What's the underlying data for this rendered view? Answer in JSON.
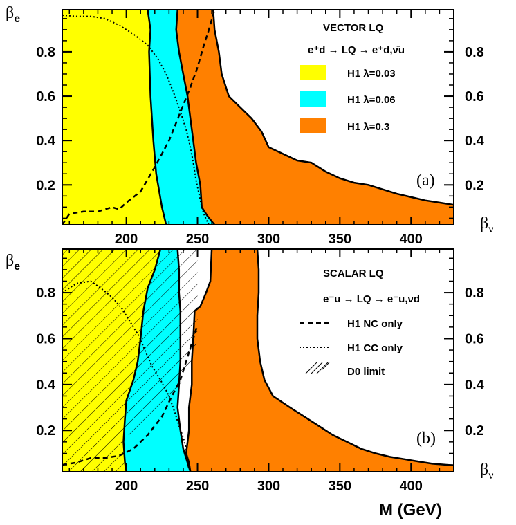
{
  "chart_data": [
    {
      "type": "area",
      "panel_label": "(a)",
      "legend_title": "VECTOR LQ",
      "process": "e⁺d → LQ → e⁺d,ν̄u",
      "x_range": [
        155,
        430
      ],
      "y_range": [
        0.02,
        0.99
      ],
      "x_ticks": [
        "200",
        "250",
        "300",
        "350",
        "400"
      ],
      "x_tick_values": [
        200,
        250,
        300,
        350,
        400
      ],
      "y_left_ticks": [
        "0.2",
        "0.4",
        "0.6",
        "0.8"
      ],
      "y_left_values": [
        0.2,
        0.4,
        0.6,
        0.8
      ],
      "y_right_ticks": [
        "0.8",
        "0.6",
        "0.4",
        "0.2"
      ],
      "y_right_values": [
        0.2,
        0.4,
        0.6,
        0.8
      ],
      "ylabel_left": "βe",
      "ylabel_right": "βν",
      "colors": {
        "fill_03": "#FFFF00",
        "fill_06": "#00FFFF",
        "fill_3": "#FF8000"
      },
      "legend": [
        {
          "label": "H1 λ=0.03",
          "color": "#FFFF00"
        },
        {
          "label": "H1 λ=0.06",
          "color": "#00FFFF"
        },
        {
          "label": "H1 λ=0.3",
          "color": "#FF8000"
        }
      ],
      "series": [
        {
          "name": "H1 λ=0.03",
          "points": [
            [
              215,
              0.99
            ],
            [
              217,
              0.9
            ],
            [
              216,
              0.8
            ],
            [
              217,
              0.6
            ],
            [
              219,
              0.4
            ],
            [
              221,
              0.25
            ],
            [
              225,
              0.1
            ],
            [
              228,
              0.02
            ]
          ]
        },
        {
          "name": "H1 λ=0.06",
          "points": [
            [
              236,
              0.99
            ],
            [
              235,
              0.9
            ],
            [
              237,
              0.8
            ],
            [
              240,
              0.7
            ],
            [
              243,
              0.6
            ],
            [
              246,
              0.45
            ],
            [
              249,
              0.3
            ],
            [
              252,
              0.2
            ],
            [
              253,
              0.1
            ],
            [
              257,
              0.06
            ],
            [
              262,
              0.02
            ]
          ]
        },
        {
          "name": "H1 λ=0.3",
          "points": [
            [
              261,
              0.99
            ],
            [
              262,
              0.9
            ],
            [
              265,
              0.8
            ],
            [
              267,
              0.7
            ],
            [
              272,
              0.6
            ],
            [
              280,
              0.55
            ],
            [
              288,
              0.5
            ],
            [
              295,
              0.44
            ],
            [
              300,
              0.37
            ],
            [
              310,
              0.34
            ],
            [
              320,
              0.31
            ],
            [
              330,
              0.3
            ],
            [
              340,
              0.26
            ],
            [
              350,
              0.23
            ],
            [
              360,
              0.21
            ],
            [
              370,
              0.2
            ],
            [
              380,
              0.18
            ],
            [
              390,
              0.16
            ],
            [
              400,
              0.145
            ],
            [
              410,
              0.13
            ],
            [
              420,
              0.12
            ],
            [
              430,
              0.11
            ]
          ]
        },
        {
          "name": "NC",
          "points": [
            [
              155,
              0.02
            ],
            [
              160,
              0.07
            ],
            [
              170,
              0.08
            ],
            [
              180,
              0.08
            ],
            [
              190,
              0.1
            ],
            [
              195,
              0.09
            ],
            [
              200,
              0.12
            ],
            [
              210,
              0.17
            ],
            [
              220,
              0.28
            ],
            [
              230,
              0.4
            ],
            [
              240,
              0.56
            ],
            [
              245,
              0.64
            ],
            [
              250,
              0.73
            ],
            [
              254,
              0.82
            ],
            [
              258,
              0.9
            ],
            [
              262,
              0.99
            ]
          ]
        },
        {
          "name": "CC",
          "points": [
            [
              155,
              0.965
            ],
            [
              165,
              0.96
            ],
            [
              175,
              0.96
            ],
            [
              185,
              0.95
            ],
            [
              195,
              0.92
            ],
            [
              205,
              0.88
            ],
            [
              215,
              0.83
            ],
            [
              222,
              0.77
            ],
            [
              228,
              0.7
            ],
            [
              233,
              0.62
            ],
            [
              238,
              0.53
            ],
            [
              242,
              0.45
            ],
            [
              245,
              0.37
            ],
            [
              247,
              0.3
            ],
            [
              249,
              0.22
            ],
            [
              251,
              0.16
            ],
            [
              253,
              0.1
            ],
            [
              255,
              0.06
            ],
            [
              258,
              0.02
            ]
          ]
        }
      ]
    },
    {
      "type": "area",
      "panel_label": "(b)",
      "legend_title": "SCALAR LQ",
      "process": "e⁻u → LQ → e⁻u,νd",
      "x_range": [
        155,
        430
      ],
      "y_range": [
        0.02,
        0.99
      ],
      "x_ticks": [
        "200",
        "250",
        "300",
        "350",
        "400"
      ],
      "x_tick_values": [
        200,
        250,
        300,
        350,
        400
      ],
      "y_left_ticks": [
        "0.2",
        "0.4",
        "0.6",
        "0.8"
      ],
      "y_left_values": [
        0.2,
        0.4,
        0.6,
        0.8
      ],
      "y_right_ticks": [
        "0.8",
        "0.6",
        "0.4",
        "0.2"
      ],
      "y_right_values": [
        0.2,
        0.4,
        0.6,
        0.8
      ],
      "ylabel_left": "βe",
      "ylabel_right": "βν",
      "xlabel": "M (GeV)",
      "legend": [
        {
          "label": "H1 NC only",
          "style": "dashed"
        },
        {
          "label": "H1 CC only",
          "style": "dotted"
        },
        {
          "label": "D0 limit",
          "style": "hatched"
        }
      ],
      "series": [
        {
          "name": "H1 λ=0.03",
          "points": [
            [
              224,
              0.99
            ],
            [
              220,
              0.9
            ],
            [
              215,
              0.82
            ],
            [
              212,
              0.72
            ],
            [
              210,
              0.6
            ],
            [
              208,
              0.5
            ],
            [
              205,
              0.42
            ],
            [
              200,
              0.33
            ],
            [
              199,
              0.25
            ],
            [
              198,
              0.15
            ],
            [
              199,
              0.06
            ],
            [
              200,
              0.02
            ]
          ]
        },
        {
          "name": "H1 λ=0.06",
          "points": [
            [
              236,
              0.99
            ],
            [
              237,
              0.9
            ],
            [
              237,
              0.8
            ],
            [
              238,
              0.72
            ],
            [
              238,
              0.6
            ],
            [
              238,
              0.5
            ],
            [
              237,
              0.4
            ],
            [
              236,
              0.3
            ],
            [
              238,
              0.2
            ],
            [
              240,
              0.12
            ],
            [
              243,
              0.06
            ],
            [
              245,
              0.02
            ]
          ]
        },
        {
          "name": "H1 λ=0.3",
          "points": [
            [
              260,
              0.99
            ],
            [
              259,
              0.85
            ],
            [
              256,
              0.8
            ],
            [
              252,
              0.74
            ],
            [
              248,
              0.72
            ],
            [
              247,
              0.6
            ],
            [
              246,
              0.5
            ],
            [
              246,
              0.4
            ],
            [
              244,
              0.3
            ],
            [
              244,
              0.2
            ],
            [
              242,
              0.1
            ],
            [
              244,
              0.06
            ],
            [
              245,
              0.02
            ]
          ]
        },
        {
          "name": "H1 λ=0.3 upper",
          "points": [
            [
              292,
              0.99
            ],
            [
              293,
              0.9
            ],
            [
              293,
              0.8
            ],
            [
              292,
              0.7
            ],
            [
              292,
              0.6
            ],
            [
              294,
              0.5
            ],
            [
              297,
              0.42
            ],
            [
              303,
              0.35
            ],
            [
              315,
              0.3
            ],
            [
              325,
              0.26
            ],
            [
              335,
              0.22
            ],
            [
              345,
              0.18
            ],
            [
              355,
              0.15
            ],
            [
              365,
              0.12
            ],
            [
              375,
              0.1
            ],
            [
              385,
              0.085
            ],
            [
              395,
              0.075
            ],
            [
              405,
              0.065
            ],
            [
              415,
              0.055
            ],
            [
              425,
              0.05
            ],
            [
              430,
              0.048
            ]
          ]
        },
        {
          "name": "NC",
          "points": [
            [
              155,
              0.05
            ],
            [
              165,
              0.06
            ],
            [
              175,
              0.08
            ],
            [
              185,
              0.08
            ],
            [
              195,
              0.09
            ],
            [
              205,
              0.12
            ],
            [
              215,
              0.18
            ],
            [
              225,
              0.26
            ],
            [
              232,
              0.35
            ],
            [
              238,
              0.42
            ],
            [
              242,
              0.5
            ],
            [
              246,
              0.58
            ],
            [
              250,
              0.66
            ]
          ]
        },
        {
          "name": "CC",
          "points": [
            [
              155,
              0.8
            ],
            [
              165,
              0.84
            ],
            [
              175,
              0.85
            ],
            [
              182,
              0.82
            ],
            [
              190,
              0.78
            ],
            [
              197,
              0.73
            ],
            [
              203,
              0.67
            ],
            [
              209,
              0.61
            ],
            [
              213,
              0.55
            ],
            [
              218,
              0.48
            ],
            [
              224,
              0.42
            ],
            [
              230,
              0.35
            ],
            [
              234,
              0.28
            ],
            [
              237,
              0.22
            ],
            [
              240,
              0.17
            ],
            [
              242,
              0.12
            ],
            [
              243,
              0.06
            ],
            [
              244,
              0.03
            ]
          ]
        },
        {
          "name": "D0 limit",
          "points": [
            [
              250,
              0.99
            ],
            [
              250,
              0.8
            ],
            [
              250,
              0.6
            ],
            [
              248,
              0.54
            ],
            [
              242,
              0.44
            ],
            [
              235,
              0.38
            ],
            [
              225,
              0.3
            ],
            [
              215,
              0.22
            ],
            [
              210,
              0.2
            ],
            [
              205,
              0.18
            ],
            [
              200,
              0.18
            ],
            [
              198,
              0.18
            ]
          ]
        }
      ]
    }
  ]
}
